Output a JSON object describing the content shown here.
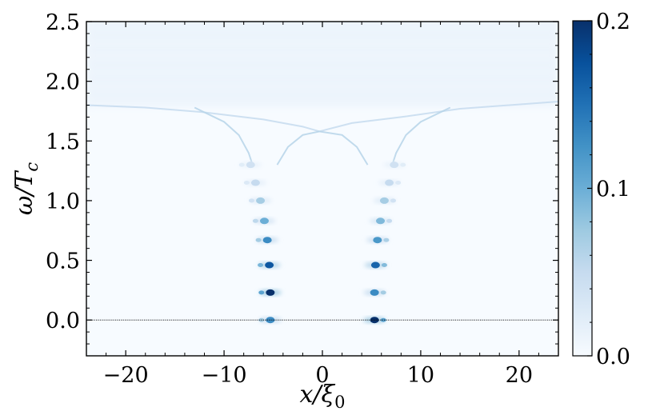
{
  "chart_data": {
    "type": "heatmap",
    "title": "",
    "xlabel": "x/ξ",
    "xlabel_sub": "0",
    "ylabel": "ω/T",
    "ylabel_sub": "c",
    "xlim": [
      -24,
      24
    ],
    "ylim": [
      -0.3,
      2.5
    ],
    "xticks": [
      -20,
      -10,
      0,
      10,
      20
    ],
    "xtick_labels": [
      "−20",
      "−10",
      "0",
      "10",
      "20"
    ],
    "yticks": [
      0.0,
      0.5,
      1.0,
      1.5,
      2.0,
      2.5
    ],
    "ytick_labels": [
      "0.0",
      "0.5",
      "1.0",
      "1.5",
      "2.0",
      "2.5"
    ],
    "colormap": "Blues",
    "colorbar": {
      "min": 0.0,
      "max": 0.2,
      "ticks": [
        0.0,
        0.1,
        0.2
      ],
      "tick_labels": [
        "0.0",
        "0.1",
        "0.2"
      ]
    },
    "reference_line": {
      "y": 0.0,
      "style": "dotted"
    },
    "continuum_edge": 1.8,
    "bound_state_crossing": {
      "x": -0.3,
      "y": 1.58
    },
    "vortex_centers": [
      -5.3,
      5.3
    ],
    "bound_states": [
      {
        "omega": 0.0,
        "x": [
          -5.3,
          5.3
        ],
        "peak": [
          0.13,
          0.2
        ]
      },
      {
        "omega": 0.23,
        "x": [
          -5.3,
          5.3
        ],
        "peak": [
          0.2,
          0.13
        ]
      },
      {
        "omega": 0.46,
        "x": [
          -5.4,
          5.4
        ],
        "peak": [
          0.17,
          0.16
        ]
      },
      {
        "omega": 0.67,
        "x": [
          -5.6,
          5.6
        ],
        "peak": [
          0.13,
          0.12
        ]
      },
      {
        "omega": 0.83,
        "x": [
          -5.9,
          5.9
        ],
        "peak": [
          0.1,
          0.09
        ]
      },
      {
        "omega": 1.0,
        "x": [
          -6.3,
          6.3
        ],
        "peak": [
          0.07,
          0.07
        ]
      },
      {
        "omega": 1.15,
        "x": [
          -6.8,
          6.8
        ],
        "peak": [
          0.05,
          0.05
        ]
      },
      {
        "omega": 1.3,
        "x": [
          -7.3,
          7.3
        ],
        "peak": [
          0.04,
          0.04
        ]
      }
    ]
  }
}
